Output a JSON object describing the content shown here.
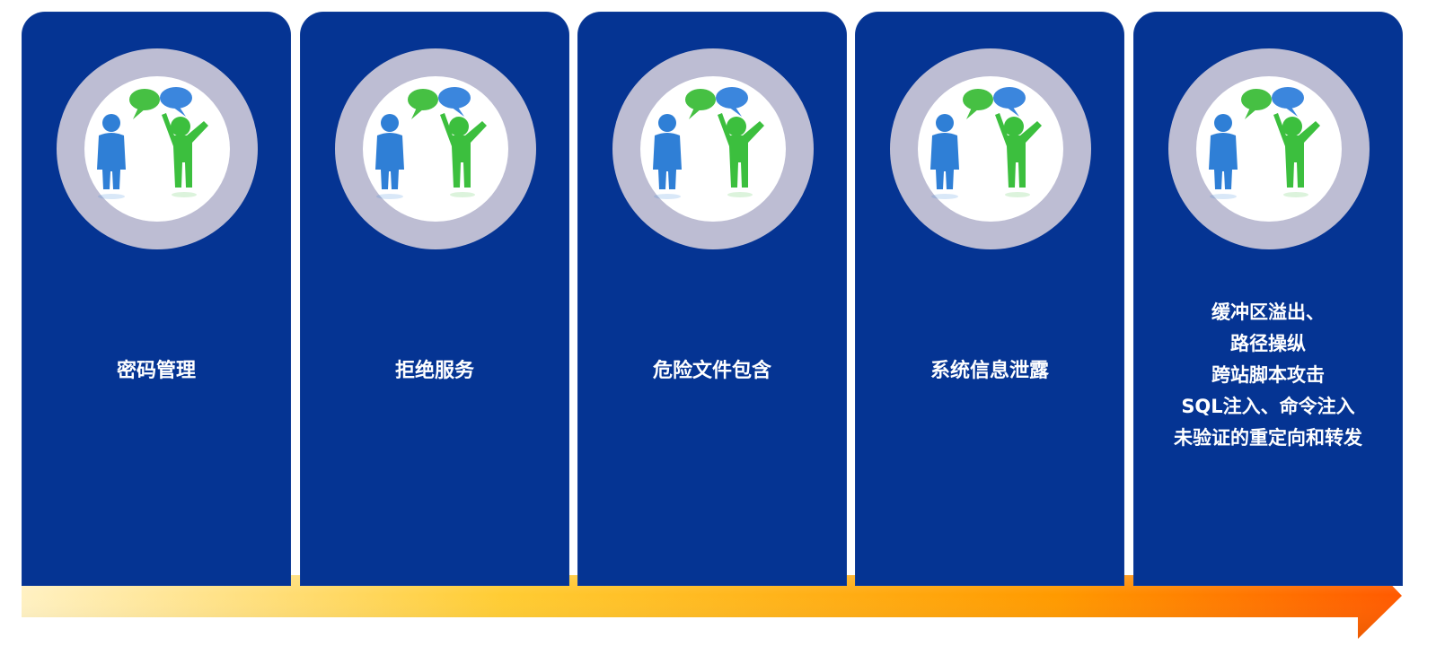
{
  "stages": [
    {
      "lines": [
        "密码管理"
      ]
    },
    {
      "lines": [
        "拒绝服务"
      ]
    },
    {
      "lines": [
        "危险文件包含"
      ]
    },
    {
      "lines": [
        "系统信息泄露"
      ]
    },
    {
      "lines": [
        "缓冲区溢出、",
        "路径操纵",
        "跨站脚本攻击",
        "SQL注入、命令注入",
        "未验证的重定向和转发"
      ]
    }
  ],
  "icon": "two-people-conversation-icon",
  "colors": {
    "card": "#053493",
    "ring": "#bdbdd3",
    "person_blue": "#2f7fd6",
    "person_green": "#3cbf3e",
    "arrow_start": "#ffe9a6",
    "arrow_end": "#ff6a00"
  }
}
